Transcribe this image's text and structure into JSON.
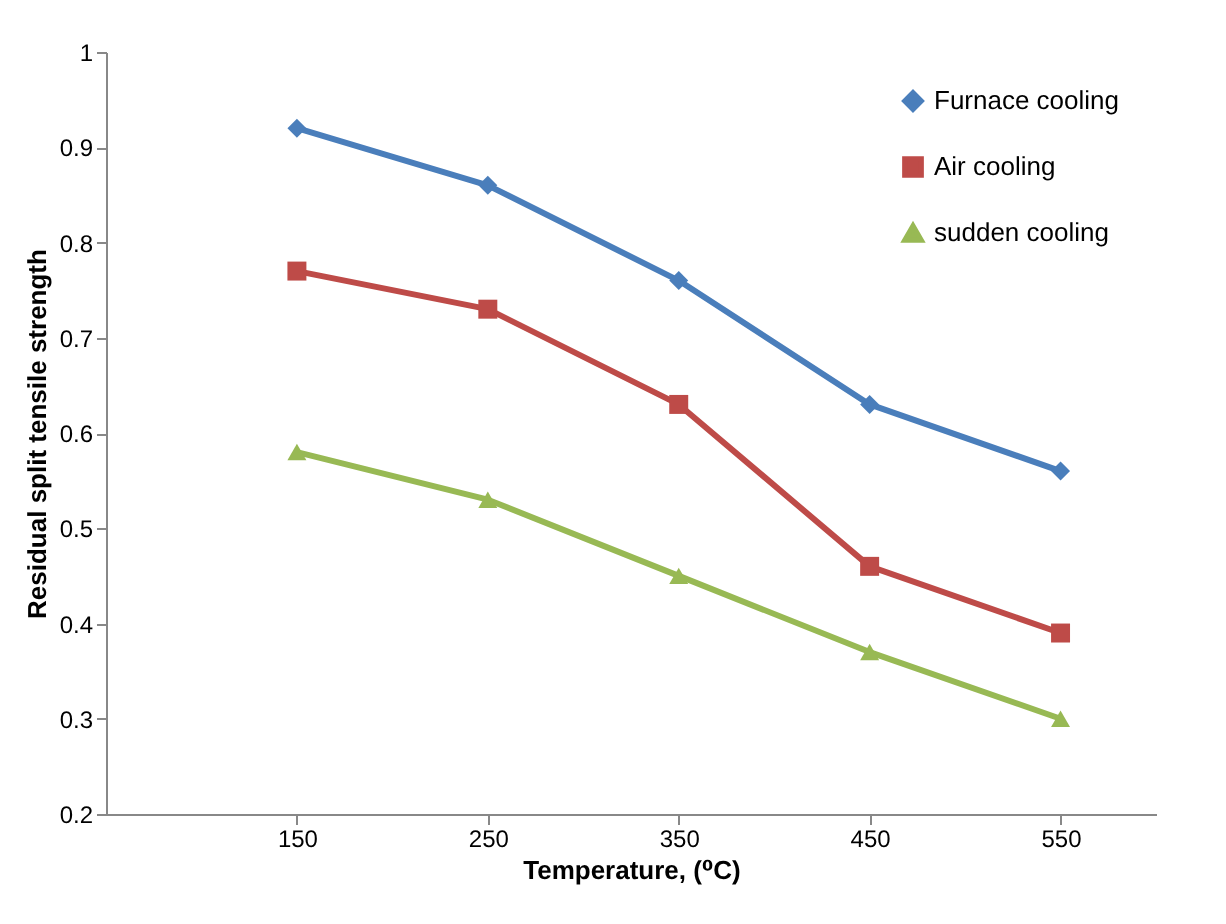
{
  "chart_data": {
    "type": "line",
    "xlabel": "Temperature, (⁰C)",
    "ylabel": "Residual split tensile strength",
    "x": [
      150,
      250,
      350,
      450,
      550
    ],
    "xlim": [
      50,
      600
    ],
    "xticks": [
      150,
      250,
      350,
      450,
      550
    ],
    "ylim": [
      0.2,
      1
    ],
    "yticks": [
      0.2,
      0.3,
      0.4,
      0.5,
      0.6,
      0.7,
      0.8,
      0.9,
      1
    ],
    "grid": false,
    "legend": "top right",
    "series": [
      {
        "name": "Furnace cooling",
        "color": "#4a7ebb",
        "marker": "diamond",
        "values": [
          0.92,
          0.86,
          0.76,
          0.63,
          0.56
        ]
      },
      {
        "name": "Air cooling",
        "color": "#be4b48",
        "marker": "square",
        "values": [
          0.77,
          0.73,
          0.63,
          0.46,
          0.39
        ]
      },
      {
        "name": "sudden cooling",
        "color": "#98b954",
        "marker": "triangle",
        "values": [
          0.58,
          0.53,
          0.45,
          0.37,
          0.3
        ]
      }
    ]
  }
}
